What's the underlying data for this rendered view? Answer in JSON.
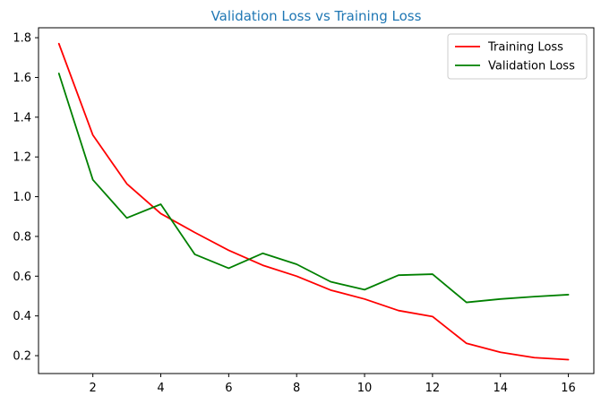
{
  "chart_data": {
    "type": "line",
    "title": "Validation Loss vs Training Loss",
    "title_color": "#1f77b4",
    "xlabel": "",
    "ylabel": "",
    "x": [
      1,
      2,
      3,
      4,
      5,
      6,
      7,
      8,
      9,
      10,
      11,
      12,
      13,
      14,
      15,
      16
    ],
    "xlim": [
      0.4,
      16.75
    ],
    "ylim": [
      0.11,
      1.85
    ],
    "x_ticks": [
      2,
      4,
      6,
      8,
      10,
      12,
      14,
      16
    ],
    "y_ticks": [
      0.2,
      0.4,
      0.6,
      0.8,
      1.0,
      1.2,
      1.4,
      1.6,
      1.8
    ],
    "grid": false,
    "legend_position": "top-right",
    "series": [
      {
        "name": "Training Loss",
        "color": "#ff0000",
        "values": [
          1.77,
          1.31,
          1.065,
          0.915,
          0.82,
          0.73,
          0.655,
          0.6,
          0.53,
          0.485,
          0.427,
          0.397,
          0.262,
          0.217,
          0.19,
          0.18
        ]
      },
      {
        "name": "Validation Loss",
        "color": "#008000",
        "values": [
          1.62,
          1.085,
          0.893,
          0.962,
          0.71,
          0.64,
          0.715,
          0.66,
          0.572,
          0.532,
          0.605,
          0.61,
          0.468,
          0.485,
          0.497,
          0.507
        ]
      }
    ]
  }
}
